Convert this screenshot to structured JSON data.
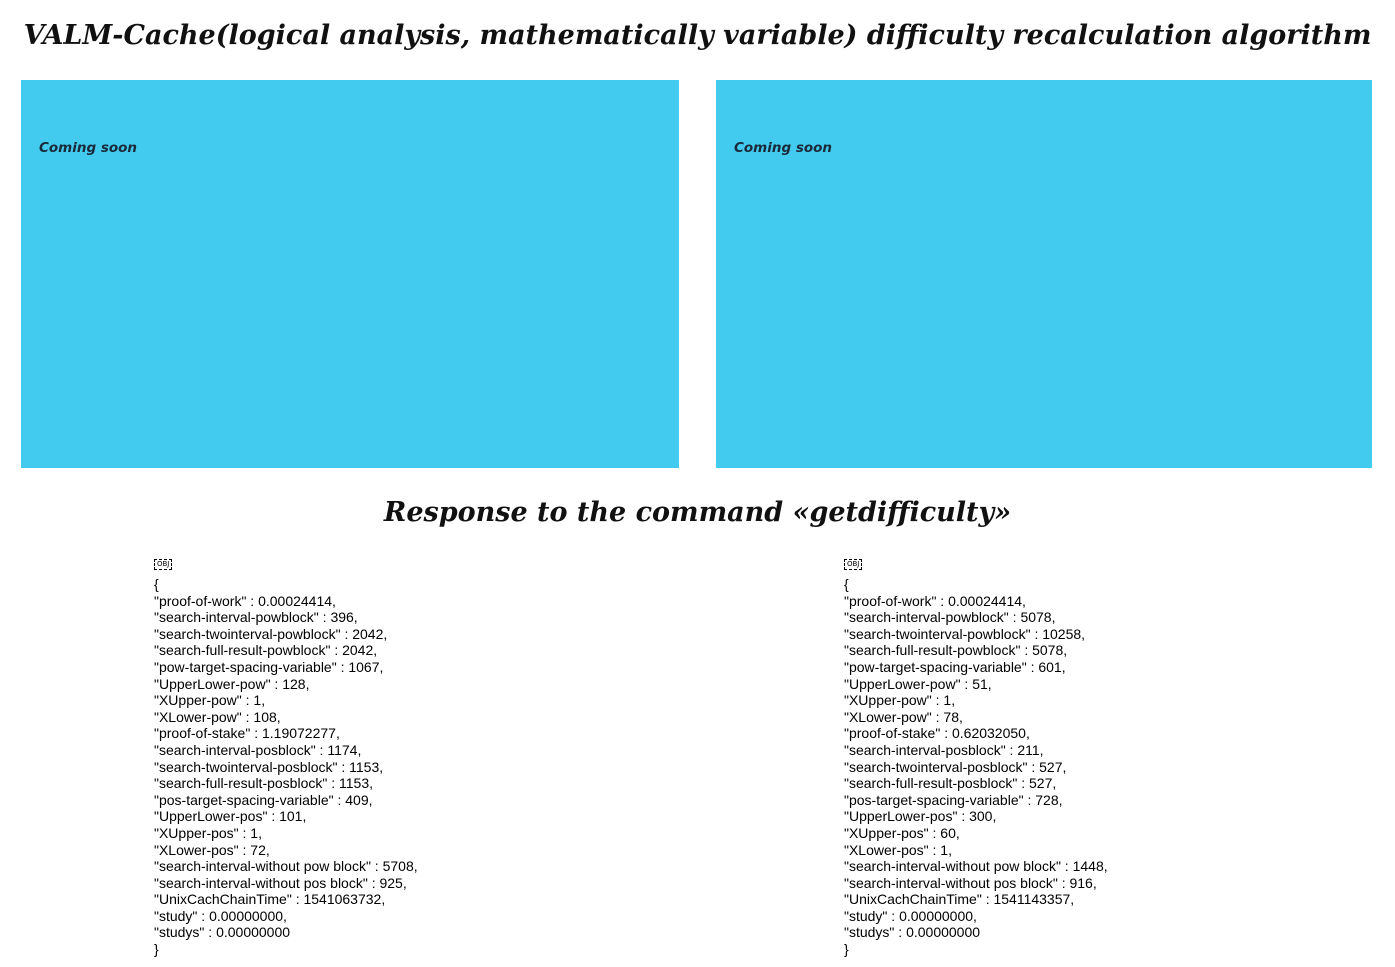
{
  "page": {
    "title": "VALM-Cache(logical analysis, mathematically variable) difficulty recalculation algorithm",
    "section_title": "Response to the command «getdifficulty»"
  },
  "panels": {
    "left": {
      "label": "Coming soon"
    },
    "right": {
      "label": "Coming soon"
    }
  },
  "colors": {
    "panel_background": "#42cbee"
  },
  "responses": {
    "left": {
      "marker": "OBJ",
      "open_brace": "{",
      "close_brace": "}",
      "lines": [
        "\"proof-of-work\" : 0.00024414,",
        "\"search-interval-powblock\" : 396,",
        "\"search-twointerval-powblock\" : 2042,",
        "\"search-full-result-powblock\" : 2042,",
        "\"pow-target-spacing-variable\" : 1067,",
        "\"UpperLower-pow\" : 128,",
        "\"XUpper-pow\" : 1,",
        "\"XLower-pow\" : 108,",
        "\"proof-of-stake\" : 1.19072277,",
        "\"search-interval-posblock\" : 1174,",
        "\"search-twointerval-posblock\" : 1153,",
        "\"search-full-result-posblock\" : 1153,",
        "\"pos-target-spacing-variable\" : 409,",
        "\"UpperLower-pos\" : 101,",
        "\"XUpper-pos\" : 1,",
        "\"XLower-pos\" : 72,",
        "\"search-interval-without pow block\" : 5708,",
        "\"search-interval-without pos block\" : 925,",
        "\"UnixCachChainTime\" : 1541063732,",
        "\"study\" : 0.00000000,",
        "\"studys\" : 0.00000000"
      ]
    },
    "right": {
      "marker": "OBJ",
      "open_brace": "{",
      "close_brace": "}",
      "lines": [
        "\"proof-of-work\" : 0.00024414,",
        "\"search-interval-powblock\" : 5078,",
        "\"search-twointerval-powblock\" : 10258,",
        "\"search-full-result-powblock\" : 5078,",
        "\"pow-target-spacing-variable\" : 601,",
        "\"UpperLower-pow\" : 51,",
        "\"XUpper-pow\" : 1,",
        "\"XLower-pow\" : 78,",
        "\"proof-of-stake\" : 0.62032050,",
        "\"search-interval-posblock\" : 211,",
        "\"search-twointerval-posblock\" : 527,",
        "\"search-full-result-posblock\" : 527,",
        "\"pos-target-spacing-variable\" : 728,",
        "\"UpperLower-pos\" : 300,",
        "\"XUpper-pos\" : 60,",
        "\"XLower-pos\" : 1,",
        "\"search-interval-without pow block\" : 1448,",
        "\"search-interval-without pos block\" : 916,",
        "\"UnixCachChainTime\" : 1541143357,",
        "\"study\" : 0.00000000,",
        "\"studys\" : 0.00000000"
      ]
    }
  }
}
